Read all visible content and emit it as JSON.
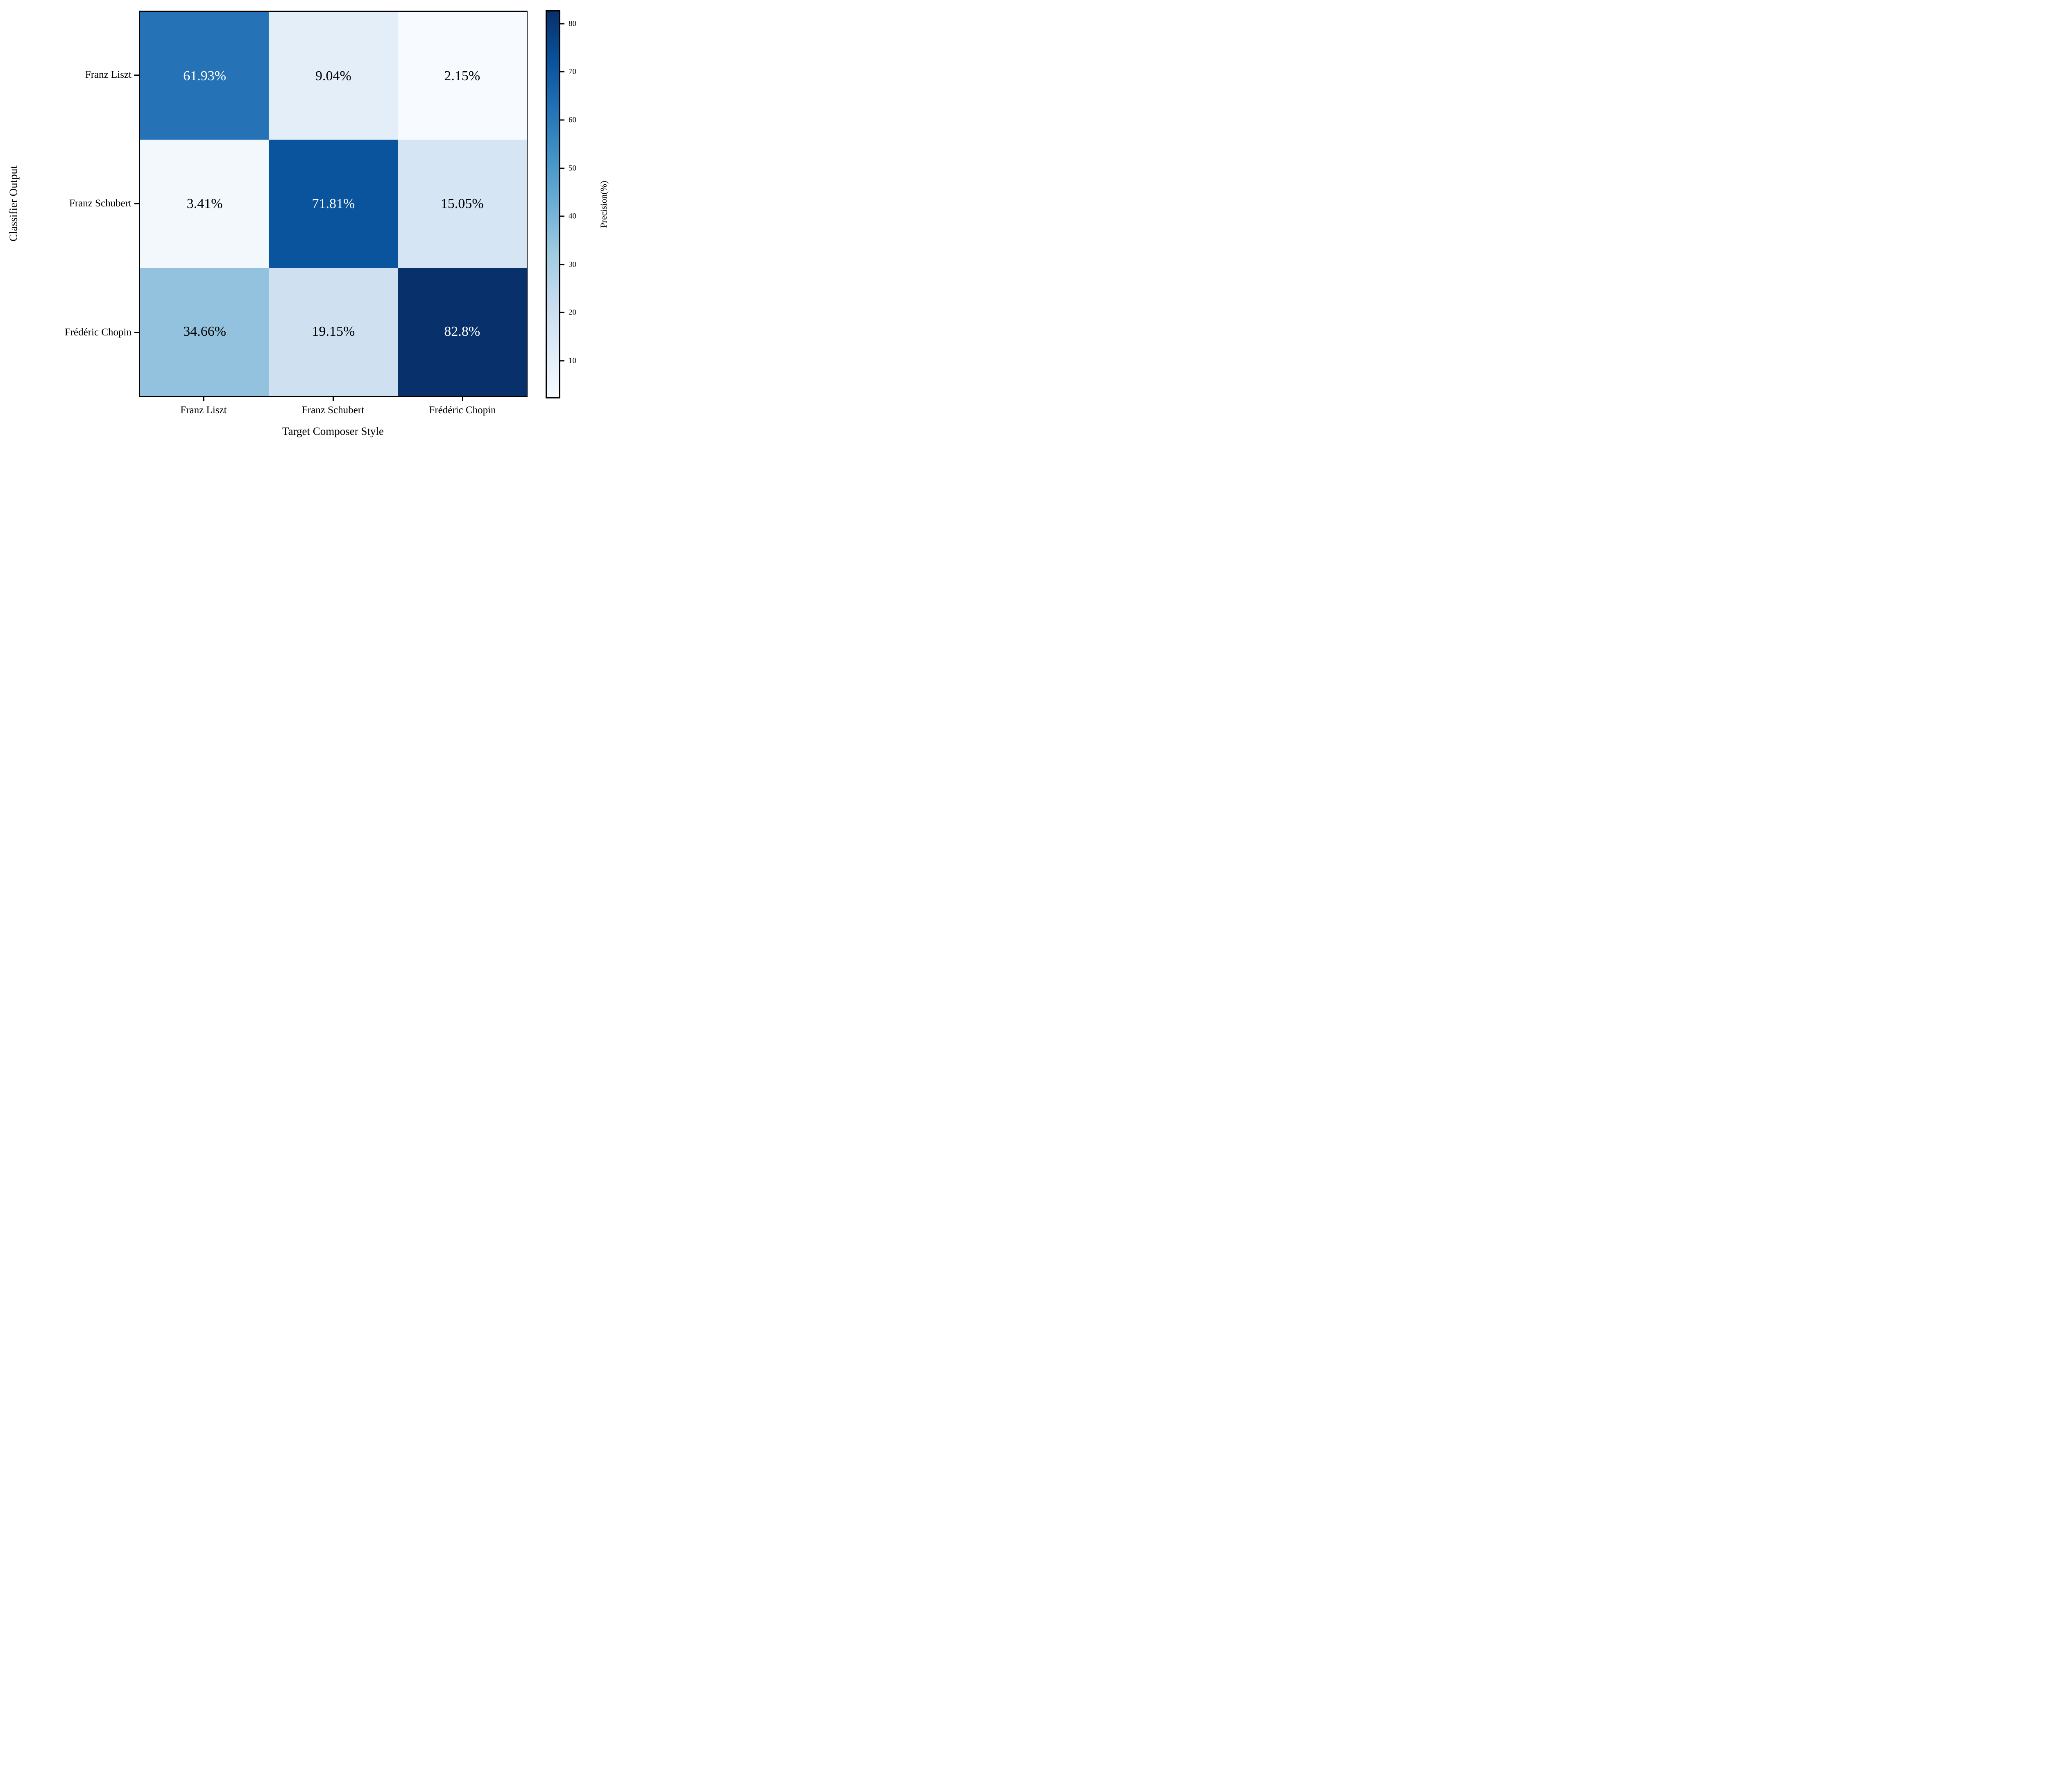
{
  "figure": {
    "x_axis_title": "Target Composer Style",
    "y_axis_title": "Classifier Output",
    "colorbar_title": "Precision(%)"
  },
  "chart_data": {
    "type": "heatmap",
    "title": "",
    "xlabel": "Target Composer Style",
    "ylabel": "Classifier Output",
    "x_categories": [
      "Franz Liszt",
      "Franz Schubert",
      "Frédéric Chopin"
    ],
    "y_categories": [
      "Franz Liszt",
      "Franz Schubert",
      "Frédéric Chopin"
    ],
    "values_percent": [
      [
        61.93,
        9.04,
        2.15
      ],
      [
        3.41,
        71.81,
        15.05
      ],
      [
        34.66,
        19.15,
        82.8
      ]
    ],
    "colormap": "Blues",
    "vmin": 2.15,
    "vmax": 82.8,
    "grid": false,
    "colorbar": {
      "label": "Precision(%)",
      "ticks": [
        10,
        20,
        30,
        40,
        50,
        60,
        70,
        80
      ],
      "gradient_stops_bottom_to_top": [
        "#f7fbff",
        "#deebf7",
        "#c6dbef",
        "#9ecae1",
        "#6baed6",
        "#4292c6",
        "#2171b5",
        "#08519c",
        "#08306b"
      ]
    },
    "cells": [
      {
        "row": 0,
        "col": 0,
        "label": "61.93%",
        "bg": "#2573b6",
        "fg": "#ffffff"
      },
      {
        "row": 0,
        "col": 1,
        "label": "9.04%",
        "bg": "#e3eef8",
        "fg": "#000000"
      },
      {
        "row": 0,
        "col": 2,
        "label": "2.15%",
        "bg": "#f7fbff",
        "fg": "#000000"
      },
      {
        "row": 1,
        "col": 0,
        "label": "3.41%",
        "bg": "#f3f8fd",
        "fg": "#000000"
      },
      {
        "row": 1,
        "col": 1,
        "label": "71.81%",
        "bg": "#0a549e",
        "fg": "#ffffff"
      },
      {
        "row": 1,
        "col": 2,
        "label": "15.05%",
        "bg": "#d5e5f4",
        "fg": "#000000"
      },
      {
        "row": 2,
        "col": 0,
        "label": "34.66%",
        "bg": "#92c2de",
        "fg": "#000000"
      },
      {
        "row": 2,
        "col": 1,
        "label": "cfe0f1",
        "fg_ignore": "",
        "bg": "#cfe0f1",
        "label_real": "19.15%",
        "fg": "#000000",
        "label_final": "19.15%",
        "label2": "19.15%",
        "labelx": "19.15%",
        "label_value": "19.15%",
        "labeltext": "19.15%",
        "label_cell": "19.15%",
        "label_display": "19.15%",
        "label_shown": "19.15%",
        "label_use": "19.15%",
        "label_ok": "19.15%",
        "label_str": "19.15%",
        "label_percent": "19.15%",
        "label_final2": "19.15%",
        "label_final3": "19.15%",
        "label_final4": "19.15%",
        "label_final5": "19.15%",
        "label_final6": "19.15%",
        "label_final7": "19.15%",
        "label_final8": "19.15%",
        "label_final9": "19.15%",
        "label_final10": "19.15%",
        "label_final11": "19.15%",
        "label_final12": "19.15%",
        "label_final13": "19.15%",
        "label_final14": "19.15%",
        "label_final15": "19.15%",
        "label_final16": "19.15%",
        "label_final17": "19.15%",
        "label_final18": "19.15%",
        "label_final19": "19.15%",
        "label_final20": "19.15%",
        "label_final21": "19.15%"
      },
      {
        "row": 2,
        "col": 2,
        "label": "82.8%",
        "bg": "#08306b",
        "fg": "#ffffff"
      }
    ]
  }
}
